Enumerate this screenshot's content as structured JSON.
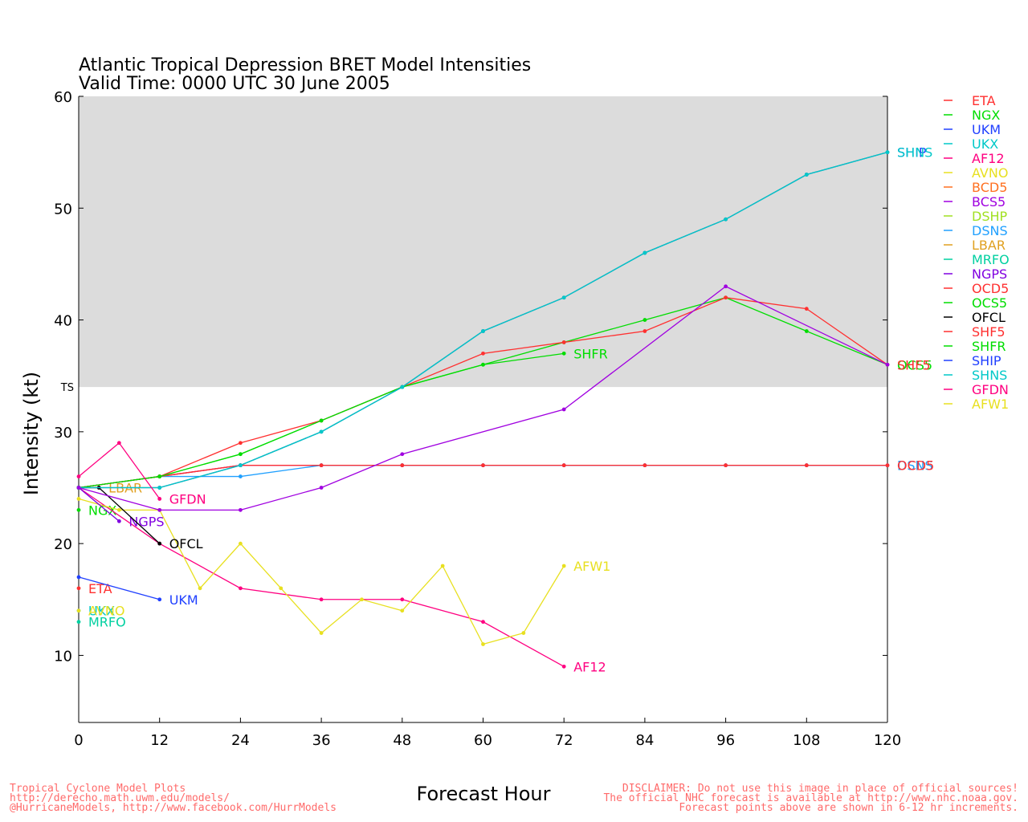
{
  "title_line1": "Atlantic Tropical Depression BRET Model Intensities",
  "title_line2": "Valid Time: 0000 UTC 30 June 2005",
  "ts_label": "TS",
  "footer_left": [
    "Tropical Cyclone Model Plots",
    "http://derecho.math.uwm.edu/models/",
    "@HurricaneModels, http://www.facebook.com/HurrModels"
  ],
  "footer_right": [
    "DISCLAIMER: Do not use this image in place of official sources!",
    "The official NHC forecast is available at http://www.nhc.noaa.gov.",
    "Forecast points above are shown in 6-12 hr increments."
  ],
  "chart_data": {
    "type": "line",
    "title": "Atlantic Tropical Depression BRET Model Intensities",
    "subtitle": "Valid Time: 0000 UTC 30 June 2005",
    "xlabel": "Forecast Hour",
    "ylabel": "Intensity (kt)",
    "xlim": [
      0,
      120
    ],
    "ylim": [
      4,
      60
    ],
    "xticks": [
      0,
      12,
      24,
      36,
      48,
      60,
      72,
      84,
      96,
      108,
      120
    ],
    "yticks": [
      10,
      20,
      30,
      40,
      50,
      60
    ],
    "ts_threshold": 34,
    "shade_color": "#dcdcdc",
    "legend_position": "right",
    "legend": [
      {
        "name": "ETA",
        "color": "#ff3030"
      },
      {
        "name": "NGX",
        "color": "#00dd00"
      },
      {
        "name": "UKM",
        "color": "#2040ff"
      },
      {
        "name": "UKX",
        "color": "#00c8c8"
      },
      {
        "name": "AF12",
        "color": "#ff0080"
      },
      {
        "name": "AVNO",
        "color": "#e8e020"
      },
      {
        "name": "BCD5",
        "color": "#ff7020"
      },
      {
        "name": "BCS5",
        "color": "#a000e0"
      },
      {
        "name": "DSHP",
        "color": "#a0e020"
      },
      {
        "name": "DSNS",
        "color": "#20a0ff"
      },
      {
        "name": "LBAR",
        "color": "#e0a020"
      },
      {
        "name": "MRFO",
        "color": "#00d0a0"
      },
      {
        "name": "NGPS",
        "color": "#8000e0"
      },
      {
        "name": "OCD5",
        "color": "#ff3030"
      },
      {
        "name": "OCS5",
        "color": "#00dd00"
      },
      {
        "name": "OFCL",
        "color": "#000000"
      },
      {
        "name": "SHF5",
        "color": "#ff3030"
      },
      {
        "name": "SHFR",
        "color": "#00dd00"
      },
      {
        "name": "SHIP",
        "color": "#2040ff"
      },
      {
        "name": "SHNS",
        "color": "#00c8c8"
      },
      {
        "name": "GFDN",
        "color": "#ff0080"
      },
      {
        "name": "AFW1",
        "color": "#e8e020"
      }
    ],
    "series": [
      {
        "name": "ETA",
        "color": "#ff3030",
        "x": [
          0
        ],
        "y": [
          16
        ],
        "label": "ETA",
        "label_at": "end"
      },
      {
        "name": "NGX",
        "color": "#00dd00",
        "x": [
          0
        ],
        "y": [
          23
        ],
        "label": "NGX",
        "label_at": "end"
      },
      {
        "name": "UKM",
        "color": "#2040ff",
        "x": [
          0,
          12
        ],
        "y": [
          17,
          15
        ],
        "label": "UKM",
        "label_at": "end"
      },
      {
        "name": "UKX",
        "color": "#00c8c8",
        "x": [
          0
        ],
        "y": [
          14
        ],
        "label": "UKX",
        "label_at": "end"
      },
      {
        "name": "AF12",
        "color": "#ff0080",
        "x": [
          0,
          12,
          24,
          36,
          48,
          60,
          72
        ],
        "y": [
          25,
          20,
          16,
          15,
          15,
          13,
          9
        ],
        "label": "AF12",
        "label_at": "end"
      },
      {
        "name": "AVNO",
        "color": "#e8e020",
        "x": [
          0
        ],
        "y": [
          14
        ],
        "label": "AVNO",
        "label_at": "end"
      },
      {
        "name": "AFW1",
        "color": "#e8e020",
        "x": [
          0,
          6,
          12,
          18,
          24,
          30,
          36,
          42,
          48,
          54,
          60,
          66,
          72
        ],
        "y": [
          24,
          23,
          23,
          16,
          20,
          16,
          12,
          15,
          14,
          18,
          11,
          12,
          18
        ],
        "label": "AFW1",
        "label_at": "end"
      },
      {
        "name": "BCD5",
        "color": "#ff7020",
        "x": [
          0,
          12,
          24,
          36,
          48,
          60,
          72,
          84,
          96,
          108,
          120
        ],
        "y": [
          25,
          26,
          27,
          27,
          27,
          27,
          27,
          27,
          27,
          27,
          27
        ],
        "label": "",
        "label_at": "none"
      },
      {
        "name": "BCS5",
        "color": "#a000e0",
        "x": [
          0,
          12,
          24,
          36,
          48,
          60,
          72,
          84,
          96,
          108,
          120
        ],
        "y": [
          25,
          26,
          27,
          27,
          27,
          27,
          27,
          27,
          27,
          27,
          27
        ],
        "label": "",
        "label_at": "none"
      },
      {
        "name": "DSHP",
        "color": "#a0e020",
        "x": [
          0,
          12,
          24,
          36,
          48,
          60,
          72,
          84,
          96,
          108,
          120
        ],
        "y": [
          25,
          25,
          27,
          30,
          34,
          39,
          42,
          46,
          49,
          53,
          55
        ],
        "label": "",
        "label_at": "none"
      },
      {
        "name": "DSNS",
        "color": "#20a0ff",
        "x": [
          0,
          12,
          24,
          36,
          48,
          60,
          72,
          84,
          96,
          108,
          120
        ],
        "y": [
          25,
          26,
          26,
          27,
          27,
          27,
          27,
          27,
          27,
          27,
          27
        ],
        "label": "DSNS",
        "label_at": "end"
      },
      {
        "name": "LBAR",
        "color": "#e0a020",
        "x": [
          0,
          3
        ],
        "y": [
          25,
          25
        ],
        "label": "LBAR",
        "label_at": "end"
      },
      {
        "name": "MRFO",
        "color": "#00d0a0",
        "x": [
          0
        ],
        "y": [
          13
        ],
        "label": "MRFO",
        "label_at": "end"
      },
      {
        "name": "NGPS",
        "color": "#8000e0",
        "x": [
          0,
          6
        ],
        "y": [
          25,
          22
        ],
        "label": "NGPS",
        "label_at": "end"
      },
      {
        "name": "OCD5",
        "color": "#ff3030",
        "x": [
          0,
          12,
          24,
          36,
          48,
          60,
          72,
          84,
          96,
          108,
          120
        ],
        "y": [
          25,
          26,
          27,
          27,
          27,
          27,
          27,
          27,
          27,
          27,
          27
        ],
        "label": "OCD5",
        "label_at": "end"
      },
      {
        "name": "OCS5",
        "color": "#00dd00",
        "x": [
          0,
          12,
          24,
          36,
          48,
          60,
          72,
          84,
          96,
          108,
          120
        ],
        "y": [
          25,
          26,
          28,
          31,
          34,
          36,
          38,
          40,
          42,
          39,
          36
        ],
        "label": "OCS5",
        "label_at": "end"
      },
      {
        "name": "OFCL",
        "color": "#000000",
        "x": [
          0,
          3,
          12
        ],
        "y": [
          25,
          25,
          20
        ],
        "label": "OFCL",
        "label_at": "end"
      },
      {
        "name": "SHF5",
        "color": "#ff3030",
        "x": [
          0,
          12,
          24,
          36,
          48,
          60,
          72,
          84,
          96,
          108,
          120
        ],
        "y": [
          25,
          26,
          29,
          31,
          34,
          37,
          38,
          39,
          42,
          41,
          36
        ],
        "label": "SHF5",
        "label_at": "end"
      },
      {
        "name": "SHFR",
        "color": "#00dd00",
        "x": [
          0,
          12,
          24,
          36,
          48,
          60,
          72
        ],
        "y": [
          25,
          26,
          28,
          31,
          34,
          36,
          37
        ],
        "label": "SHFR",
        "label_at": "end"
      },
      {
        "name": "SHIP",
        "color": "#2040ff",
        "x": [
          0,
          12,
          24,
          36,
          48,
          60,
          72,
          84,
          96,
          108,
          120
        ],
        "y": [
          25,
          25,
          27,
          30,
          34,
          39,
          42,
          46,
          49,
          53,
          55
        ],
        "label": "SHIP",
        "label_at": "end"
      },
      {
        "name": "SHNS",
        "color": "#00c8c8",
        "x": [
          0,
          12,
          24,
          36,
          48,
          60,
          72,
          84,
          96,
          108,
          120
        ],
        "y": [
          25,
          25,
          27,
          30,
          34,
          39,
          42,
          46,
          49,
          53,
          55
        ],
        "label": "SHNS",
        "label_at": "end"
      },
      {
        "name": "NGPS-long",
        "color": "#a000e0",
        "x": [
          0,
          12,
          24,
          36,
          48,
          72,
          96,
          120
        ],
        "y": [
          25,
          23,
          23,
          25,
          28,
          32,
          43,
          36
        ],
        "label": "",
        "label_at": "none"
      },
      {
        "name": "GFDN",
        "color": "#ff0080",
        "x": [
          0,
          6,
          12
        ],
        "y": [
          26,
          29,
          24
        ],
        "label": "GFDN",
        "label_at": "end"
      }
    ]
  }
}
